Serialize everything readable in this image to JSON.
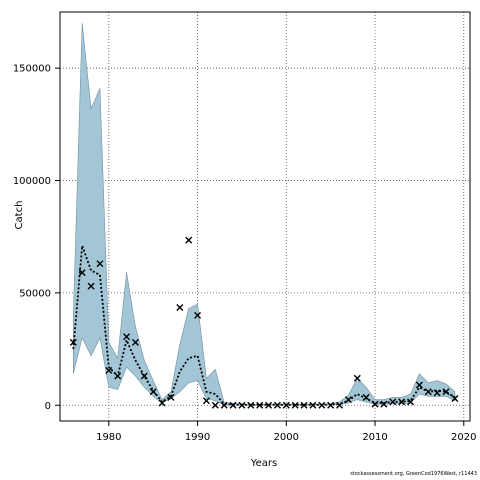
{
  "credit": "stockassessment.org, GreenCod1976West, r11443",
  "colors": {
    "band": "#a3c6d6",
    "band_edge": "#6f8f9c",
    "line": "#000000",
    "marker": "#000000",
    "grid": "#555555"
  },
  "chart_data": {
    "type": "line",
    "title": "",
    "xlabel": "Years",
    "ylabel": "Catch",
    "xlim": [
      1974.5,
      2020.7
    ],
    "ylim": [
      -7000,
      175000
    ],
    "xticks": [
      1980,
      1990,
      2000,
      2010,
      2020
    ],
    "yticks": [
      0,
      50000,
      100000,
      150000
    ],
    "ytick_labels": [
      "0",
      "50000",
      "100000",
      "150000"
    ],
    "grid": true,
    "x": [
      1976,
      1977,
      1978,
      1979,
      1980,
      1981,
      1982,
      1983,
      1984,
      1985,
      1986,
      1987,
      1988,
      1989,
      1990,
      1991,
      1992,
      1993,
      1994,
      1995,
      1996,
      1997,
      1998,
      1999,
      2000,
      2001,
      2002,
      2003,
      2004,
      2005,
      2006,
      2007,
      2008,
      2009,
      2010,
      2011,
      2012,
      2013,
      2014,
      2015,
      2016,
      2017,
      2018,
      2019
    ],
    "series": [
      {
        "name": "",
        "style": "dotted-line",
        "values": [
          25000,
          71000,
          60000,
          58000,
          17000,
          13000,
          29000,
          20000,
          13000,
          6500,
          1500,
          4000,
          15000,
          21000,
          22000,
          6000,
          5000,
          500,
          300,
          200,
          200,
          200,
          200,
          200,
          200,
          200,
          200,
          200,
          200,
          300,
          500,
          2000,
          5000,
          3000,
          1000,
          1000,
          1500,
          1500,
          2000,
          8000,
          6000,
          6500,
          6000,
          3500
        ]
      },
      {
        "name": "",
        "style": "band",
        "lower": [
          14000,
          30000,
          22000,
          30000,
          8000,
          7000,
          17000,
          13000,
          8000,
          4000,
          1000,
          3000,
          6000,
          10000,
          11000,
          3000,
          2000,
          200,
          100,
          100,
          100,
          100,
          100,
          100,
          100,
          100,
          100,
          100,
          100,
          200,
          300,
          1000,
          2500,
          1500,
          500,
          500,
          700,
          700,
          1000,
          5000,
          4000,
          4000,
          4000,
          2000
        ],
        "upper": [
          40000,
          170000,
          132000,
          141000,
          28000,
          21000,
          59000,
          35000,
          20000,
          11000,
          2500,
          6000,
          27000,
          43000,
          45000,
          12000,
          16000,
          1200,
          800,
          500,
          500,
          500,
          500,
          500,
          500,
          500,
          500,
          500,
          500,
          700,
          1500,
          4500,
          12000,
          8000,
          2500,
          2500,
          3500,
          3500,
          5000,
          14000,
          10000,
          11000,
          9500,
          6000
        ]
      },
      {
        "name": "",
        "style": "x-markers",
        "values": [
          28000,
          59000,
          53000,
          63000,
          15500,
          13000,
          30500,
          28000,
          13000,
          6000,
          1000,
          3500,
          43500,
          73500,
          40000,
          2000,
          0,
          0,
          0,
          0,
          0,
          0,
          0,
          0,
          0,
          0,
          0,
          0,
          0,
          0,
          0,
          2500,
          12000,
          3500,
          500,
          500,
          1500,
          1500,
          1500,
          9000,
          6000,
          5500,
          6000,
          3000
        ]
      }
    ]
  }
}
